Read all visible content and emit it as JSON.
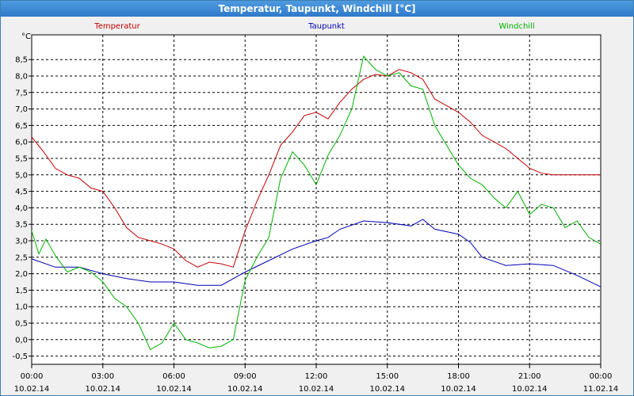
{
  "window": {
    "title": "Temperatur, Taupunkt, Windchill [°C]"
  },
  "chart_data": {
    "type": "line",
    "title": "Temperatur, Taupunkt, Windchill [°C]",
    "ylabel": "°C",
    "xlabel": "",
    "ylim": [
      -0.75,
      9.25
    ],
    "xlim": [
      0,
      24
    ],
    "grid": true,
    "legend_placement": "top",
    "yticks": [
      "-0,5",
      "0,0",
      "0,5",
      "1,0",
      "1,5",
      "2,0",
      "2,5",
      "3,0",
      "3,5",
      "4,0",
      "4,5",
      "5,0",
      "5,5",
      "6,0",
      "6,5",
      "7,0",
      "7,5",
      "8,0",
      "8,5"
    ],
    "xticks": [
      {
        "time": "00:00",
        "date": "10.02.14"
      },
      {
        "time": "03:00",
        "date": "10.02.14"
      },
      {
        "time": "06:00",
        "date": "10.02.14"
      },
      {
        "time": "09:00",
        "date": "10.02.14"
      },
      {
        "time": "12:00",
        "date": "10.02.14"
      },
      {
        "time": "15:00",
        "date": "10.02.14"
      },
      {
        "time": "18:00",
        "date": "10.02.14"
      },
      {
        "time": "21:00",
        "date": "10.02.14"
      },
      {
        "time": "00:00",
        "date": "11.02.14"
      }
    ],
    "series": [
      {
        "name": "Temperatur",
        "color": "#c00000",
        "points": [
          [
            0,
            6.15
          ],
          [
            0.5,
            5.7
          ],
          [
            1,
            5.2
          ],
          [
            1.5,
            5.0
          ],
          [
            2,
            4.9
          ],
          [
            2.5,
            4.6
          ],
          [
            3,
            4.5
          ],
          [
            3.5,
            4.0
          ],
          [
            4,
            3.4
          ],
          [
            4.5,
            3.1
          ],
          [
            5,
            3.0
          ],
          [
            5.5,
            2.9
          ],
          [
            6,
            2.75
          ],
          [
            6.5,
            2.4
          ],
          [
            7,
            2.2
          ],
          [
            7.5,
            2.35
          ],
          [
            8,
            2.3
          ],
          [
            8.5,
            2.2
          ],
          [
            9,
            3.3
          ],
          [
            9.5,
            4.2
          ],
          [
            10,
            5.0
          ],
          [
            10.5,
            5.9
          ],
          [
            11,
            6.3
          ],
          [
            11.5,
            6.8
          ],
          [
            12,
            6.9
          ],
          [
            12.5,
            6.7
          ],
          [
            13,
            7.2
          ],
          [
            13.5,
            7.6
          ],
          [
            14,
            7.9
          ],
          [
            14.5,
            8.05
          ],
          [
            15,
            8.0
          ],
          [
            15.5,
            8.2
          ],
          [
            16,
            8.1
          ],
          [
            16.5,
            7.9
          ],
          [
            17,
            7.3
          ],
          [
            17.5,
            7.1
          ],
          [
            18,
            6.9
          ],
          [
            18.5,
            6.6
          ],
          [
            19,
            6.2
          ],
          [
            19.5,
            6.0
          ],
          [
            20,
            5.8
          ],
          [
            20.5,
            5.5
          ],
          [
            21,
            5.2
          ],
          [
            21.5,
            5.05
          ],
          [
            22,
            5.0
          ],
          [
            22.5,
            5.0
          ],
          [
            23,
            5.0
          ],
          [
            23.5,
            5.0
          ],
          [
            24,
            5.0
          ]
        ]
      },
      {
        "name": "Taupunkt",
        "color": "#0000b0",
        "points": [
          [
            0,
            2.45
          ],
          [
            1,
            2.2
          ],
          [
            2,
            2.2
          ],
          [
            3,
            2.0
          ],
          [
            4,
            1.85
          ],
          [
            5,
            1.75
          ],
          [
            6,
            1.75
          ],
          [
            7,
            1.65
          ],
          [
            8,
            1.65
          ],
          [
            9,
            2.05
          ],
          [
            10,
            2.4
          ],
          [
            11,
            2.75
          ],
          [
            12,
            3.0
          ],
          [
            12.5,
            3.1
          ],
          [
            13,
            3.35
          ],
          [
            14,
            3.6
          ],
          [
            15,
            3.55
          ],
          [
            16,
            3.45
          ],
          [
            16.5,
            3.65
          ],
          [
            17,
            3.35
          ],
          [
            18,
            3.2
          ],
          [
            18.5,
            2.95
          ],
          [
            19,
            2.5
          ],
          [
            20,
            2.25
          ],
          [
            21,
            2.3
          ],
          [
            22,
            2.25
          ],
          [
            23,
            1.95
          ],
          [
            24,
            1.6
          ]
        ]
      },
      {
        "name": "Windchill",
        "color": "#00b000",
        "points": [
          [
            0,
            3.3
          ],
          [
            0.3,
            2.6
          ],
          [
            0.6,
            3.05
          ],
          [
            1,
            2.55
          ],
          [
            1.5,
            2.05
          ],
          [
            2,
            2.2
          ],
          [
            2.5,
            2.05
          ],
          [
            3,
            1.75
          ],
          [
            3.5,
            1.25
          ],
          [
            4,
            1.0
          ],
          [
            4.5,
            0.5
          ],
          [
            5,
            -0.3
          ],
          [
            5.5,
            -0.1
          ],
          [
            6,
            0.5
          ],
          [
            6.5,
            0.0
          ],
          [
            7,
            -0.1
          ],
          [
            7.5,
            -0.25
          ],
          [
            8,
            -0.2
          ],
          [
            8.5,
            0.0
          ],
          [
            9,
            1.8
          ],
          [
            9.5,
            2.5
          ],
          [
            10,
            3.1
          ],
          [
            10.5,
            4.9
          ],
          [
            11,
            5.7
          ],
          [
            11.5,
            5.3
          ],
          [
            12,
            4.7
          ],
          [
            12.5,
            5.6
          ],
          [
            13,
            6.2
          ],
          [
            13.5,
            7.0
          ],
          [
            14,
            8.6
          ],
          [
            14.5,
            8.2
          ],
          [
            15,
            8.0
          ],
          [
            15.5,
            8.1
          ],
          [
            16,
            7.7
          ],
          [
            16.5,
            7.6
          ],
          [
            17,
            6.5
          ],
          [
            17.5,
            5.9
          ],
          [
            18,
            5.3
          ],
          [
            18.5,
            4.9
          ],
          [
            19,
            4.7
          ],
          [
            19.5,
            4.3
          ],
          [
            20,
            4.0
          ],
          [
            20.5,
            4.5
          ],
          [
            21,
            3.8
          ],
          [
            21.5,
            4.1
          ],
          [
            22,
            4.0
          ],
          [
            22.5,
            3.4
          ],
          [
            23,
            3.6
          ],
          [
            23.5,
            3.1
          ],
          [
            24,
            2.9
          ]
        ]
      }
    ]
  }
}
